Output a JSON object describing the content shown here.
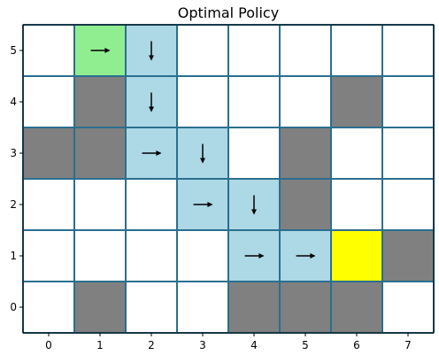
{
  "chart_data": {
    "type": "heatmap",
    "title": "Optimal Policy",
    "xlabel": "",
    "ylabel": "",
    "x_ticks": [
      0,
      1,
      2,
      3,
      4,
      5,
      6,
      7
    ],
    "y_ticks": [
      0,
      1,
      2,
      3,
      4,
      5
    ],
    "xlim": [
      -0.5,
      7.5
    ],
    "ylim": [
      -0.5,
      5.5
    ],
    "grid": true,
    "colors": {
      "empty": "#ffffff",
      "obstacle": "#808080",
      "start": "#90ee90",
      "goal": "#ffff00",
      "path": "#add8e6",
      "grid_line": "#2a6f8f",
      "arrow": "#000000"
    },
    "cells": [
      {
        "x": 1,
        "y": 5,
        "type": "start",
        "action": "right"
      },
      {
        "x": 2,
        "y": 5,
        "type": "path",
        "action": "down"
      },
      {
        "x": 2,
        "y": 4,
        "type": "path",
        "action": "down"
      },
      {
        "x": 2,
        "y": 3,
        "type": "path",
        "action": "right"
      },
      {
        "x": 3,
        "y": 3,
        "type": "path",
        "action": "down"
      },
      {
        "x": 3,
        "y": 2,
        "type": "path",
        "action": "right"
      },
      {
        "x": 4,
        "y": 2,
        "type": "path",
        "action": "down"
      },
      {
        "x": 4,
        "y": 1,
        "type": "path",
        "action": "right"
      },
      {
        "x": 5,
        "y": 1,
        "type": "path",
        "action": "right"
      },
      {
        "x": 6,
        "y": 1,
        "type": "goal",
        "action": ""
      },
      {
        "x": 1,
        "y": 4,
        "type": "obstacle",
        "action": ""
      },
      {
        "x": 6,
        "y": 4,
        "type": "obstacle",
        "action": ""
      },
      {
        "x": 0,
        "y": 3,
        "type": "obstacle",
        "action": ""
      },
      {
        "x": 1,
        "y": 3,
        "type": "obstacle",
        "action": ""
      },
      {
        "x": 5,
        "y": 3,
        "type": "obstacle",
        "action": ""
      },
      {
        "x": 5,
        "y": 2,
        "type": "obstacle",
        "action": ""
      },
      {
        "x": 7,
        "y": 1,
        "type": "obstacle",
        "action": ""
      },
      {
        "x": 1,
        "y": 0,
        "type": "obstacle",
        "action": ""
      },
      {
        "x": 4,
        "y": 0,
        "type": "obstacle",
        "action": ""
      },
      {
        "x": 5,
        "y": 0,
        "type": "obstacle",
        "action": ""
      },
      {
        "x": 6,
        "y": 0,
        "type": "obstacle",
        "action": ""
      }
    ]
  }
}
